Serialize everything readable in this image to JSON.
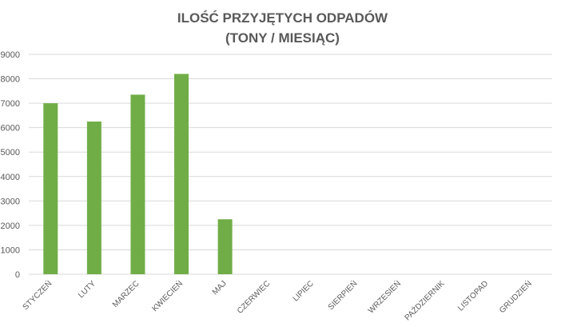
{
  "chart_data": {
    "type": "bar",
    "title_lines": [
      "ILOŚĆ PRZYJĘTYCH ODPADÓW",
      "(TONY / MIESIĄC)"
    ],
    "xlabel": "",
    "ylabel": "",
    "categories": [
      "STYCZEŃ",
      "LUTY",
      "MARZEC",
      "KWIECIEŃ",
      "MAJ",
      "CZERWIEC",
      "LIPIEC",
      "SIERPIEŃ",
      "WRZESIEŃ",
      "PAŹDZIERNIK",
      "LISTOPAD",
      "GRUDZIEŃ"
    ],
    "values": [
      7000,
      6250,
      7350,
      8200,
      2250,
      0,
      0,
      0,
      0,
      0,
      0,
      0
    ],
    "ylim": [
      0,
      9000
    ],
    "yticks": [
      0,
      1000,
      2000,
      3000,
      4000,
      5000,
      6000,
      7000,
      8000,
      9000
    ],
    "grid": true,
    "legend": "none",
    "colors": {
      "bar": "#70ad47",
      "grid": "#d9d9d9",
      "text": "#595959"
    }
  }
}
